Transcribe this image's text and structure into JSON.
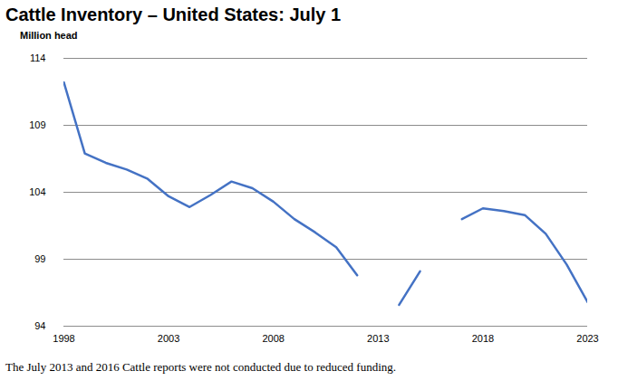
{
  "chart_data": {
    "type": "line",
    "title": "Cattle Inventory – United States: July 1",
    "y_label": "Million head",
    "caption": "The July 2013 and 2016 Cattle reports were not conducted due to reduced funding.",
    "x": [
      1998,
      1999,
      2000,
      2001,
      2002,
      2003,
      2004,
      2005,
      2006,
      2007,
      2008,
      2009,
      2010,
      2011,
      2012,
      2013,
      2014,
      2015,
      2016,
      2017,
      2018,
      2019,
      2020,
      2021,
      2022,
      2023
    ],
    "values": [
      112.2,
      106.9,
      106.2,
      105.7,
      105.0,
      103.7,
      102.9,
      103.8,
      104.8,
      104.3,
      103.3,
      102.0,
      101.0,
      99.9,
      97.8,
      null,
      95.6,
      98.1,
      null,
      102.0,
      102.8,
      102.6,
      102.3,
      100.9,
      98.6,
      95.8
    ],
    "color": "#4472c4",
    "xlim": [
      1998,
      2023
    ],
    "xticks": [
      1998,
      2003,
      2008,
      2013,
      2018,
      2023
    ],
    "ylim": [
      94,
      114
    ],
    "yticks": [
      94,
      99,
      104,
      109,
      114
    ],
    "grid": true
  }
}
